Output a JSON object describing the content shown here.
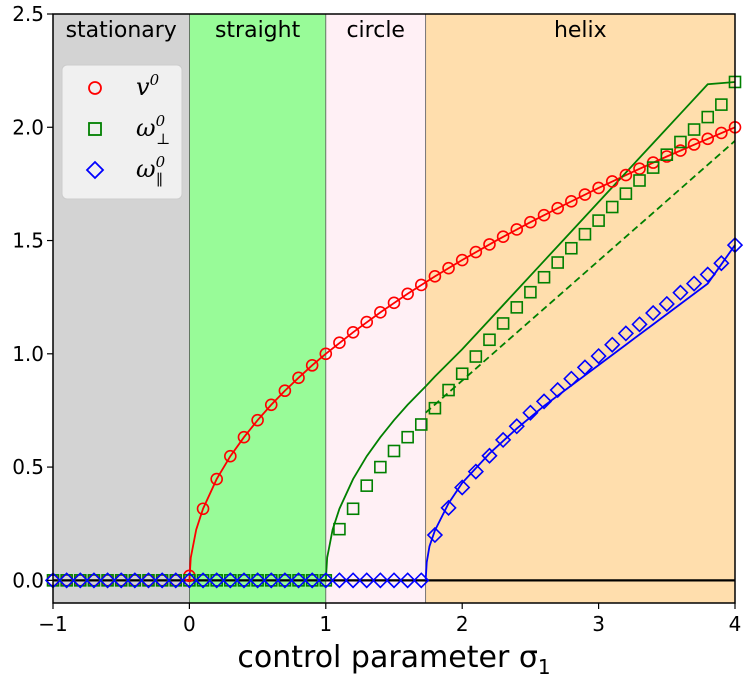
{
  "chart_data": {
    "type": "line",
    "xlabel": "control parameter σ",
    "xlabel_sub": "1",
    "xlim": [
      -1,
      4
    ],
    "ylim": [
      -0.1,
      2.5
    ],
    "x_ticks": [
      -1,
      0,
      1,
      2,
      3,
      4
    ],
    "x_tick_labels": [
      "−1",
      "0",
      "1",
      "2",
      "3",
      "4"
    ],
    "y_ticks": [
      0.0,
      0.5,
      1.0,
      1.5,
      2.0,
      2.5
    ],
    "y_tick_labels": [
      "0.0",
      "0.5",
      "1.0",
      "1.5",
      "2.0",
      "2.5"
    ],
    "legend_position": "upper-left",
    "regions": [
      {
        "label": "stationary",
        "from": -1,
        "to": 0,
        "color": "#d3d3d3"
      },
      {
        "label": "straight",
        "from": 0,
        "to": 1,
        "color": "#98fb98"
      },
      {
        "label": "circle",
        "from": 1,
        "to": 1.732,
        "color": "#fff0f5"
      },
      {
        "label": "helix",
        "from": 1.732,
        "to": 4,
        "color": "#ffdead"
      }
    ],
    "series": [
      {
        "name": "v",
        "superscript": "0",
        "subscript": "",
        "color": "#ff0000",
        "marker": "circle",
        "curve_points": [
          [
            0,
            0
          ],
          [
            0.01,
            0.1
          ],
          [
            0.05,
            0.224
          ],
          [
            0.1,
            0.316
          ],
          [
            0.2,
            0.447
          ],
          [
            0.3,
            0.548
          ],
          [
            0.4,
            0.632
          ],
          [
            0.5,
            0.707
          ],
          [
            0.6,
            0.775
          ],
          [
            0.7,
            0.837
          ],
          [
            0.8,
            0.894
          ],
          [
            0.9,
            0.949
          ],
          [
            1.0,
            1.0
          ],
          [
            1.2,
            1.095
          ],
          [
            1.4,
            1.183
          ],
          [
            1.6,
            1.265
          ],
          [
            1.8,
            1.342
          ],
          [
            2.0,
            1.414
          ],
          [
            2.25,
            1.5
          ],
          [
            2.5,
            1.581
          ],
          [
            2.75,
            1.658
          ],
          [
            3.0,
            1.732
          ],
          [
            3.25,
            1.803
          ],
          [
            3.5,
            1.871
          ],
          [
            3.75,
            1.936
          ],
          [
            4.0,
            2.0
          ]
        ],
        "marker_x": [
          -1,
          -0.9,
          -0.8,
          -0.7,
          -0.6,
          -0.5,
          -0.4,
          -0.3,
          -0.2,
          -0.1,
          0,
          0.1,
          0.2,
          0.3,
          0.4,
          0.5,
          0.6,
          0.7,
          0.8,
          0.9,
          1.0,
          1.1,
          1.2,
          1.3,
          1.4,
          1.5,
          1.6,
          1.7,
          1.8,
          1.9,
          2.0,
          2.1,
          2.2,
          2.3,
          2.4,
          2.5,
          2.6,
          2.7,
          2.8,
          2.9,
          3.0,
          3.1,
          3.2,
          3.3,
          3.4,
          3.5,
          3.6,
          3.7,
          3.8,
          3.9,
          4.0
        ],
        "marker_y": [
          0,
          0,
          0,
          0,
          0,
          0,
          0,
          0,
          0,
          0,
          0.02,
          0.316,
          0.447,
          0.548,
          0.632,
          0.707,
          0.775,
          0.837,
          0.894,
          0.949,
          1.0,
          1.049,
          1.095,
          1.14,
          1.183,
          1.225,
          1.265,
          1.304,
          1.342,
          1.378,
          1.414,
          1.449,
          1.483,
          1.517,
          1.549,
          1.581,
          1.612,
          1.643,
          1.673,
          1.703,
          1.732,
          1.761,
          1.789,
          1.817,
          1.844,
          1.871,
          1.897,
          1.924,
          1.949,
          1.975,
          2.0
        ]
      },
      {
        "name": "ω",
        "superscript": "0",
        "subscript": "⊥",
        "color": "#008000",
        "marker": "square",
        "curve_points": [
          [
            1.0,
            0
          ],
          [
            1.01,
            0.1
          ],
          [
            1.05,
            0.224
          ],
          [
            1.1,
            0.316
          ],
          [
            1.2,
            0.447
          ],
          [
            1.3,
            0.548
          ],
          [
            1.4,
            0.632
          ],
          [
            1.5,
            0.707
          ],
          [
            1.6,
            0.775
          ],
          [
            1.732,
            0.856
          ],
          [
            1.8,
            0.9
          ],
          [
            2.0,
            1.02
          ],
          [
            2.2,
            1.15
          ],
          [
            2.4,
            1.28
          ],
          [
            2.6,
            1.41
          ],
          [
            2.8,
            1.54
          ],
          [
            3.0,
            1.67
          ],
          [
            3.2,
            1.8
          ],
          [
            3.4,
            1.93
          ],
          [
            3.6,
            2.06
          ],
          [
            3.8,
            2.19
          ],
          [
            4.0,
            2.2
          ]
        ],
        "marker_x": [
          -1,
          -0.9,
          -0.8,
          -0.7,
          -0.6,
          -0.5,
          -0.4,
          -0.3,
          -0.2,
          -0.1,
          0,
          0.1,
          0.2,
          0.3,
          0.4,
          0.5,
          0.6,
          0.7,
          0.8,
          0.9,
          1.0,
          1.1,
          1.2,
          1.3,
          1.4,
          1.5,
          1.6,
          1.7,
          1.8,
          1.9,
          2.0,
          2.1,
          2.2,
          2.3,
          2.4,
          2.5,
          2.6,
          2.7,
          2.8,
          2.9,
          3.0,
          3.1,
          3.2,
          3.3,
          3.4,
          3.5,
          3.6,
          3.7,
          3.8,
          3.9,
          4.0
        ],
        "marker_y": [
          0,
          0,
          0,
          0,
          0,
          0,
          0,
          0,
          0,
          0,
          0,
          0,
          0,
          0,
          0,
          0,
          0,
          0,
          0,
          0,
          0,
          0.226,
          0.316,
          0.418,
          0.5,
          0.571,
          0.632,
          0.688,
          0.76,
          0.84,
          0.912,
          0.988,
          1.062,
          1.134,
          1.205,
          1.272,
          1.338,
          1.403,
          1.466,
          1.528,
          1.588,
          1.648,
          1.707,
          1.765,
          1.822,
          1.879,
          1.935,
          1.99,
          2.045,
          2.1,
          2.2
        ]
      },
      {
        "name": "ω",
        "superscript": "0",
        "subscript": "∥",
        "color": "#0000ff",
        "marker": "diamond",
        "curve_points": [
          [
            1.732,
            0
          ],
          [
            1.74,
            0.08
          ],
          [
            1.76,
            0.15
          ],
          [
            1.8,
            0.22
          ],
          [
            1.9,
            0.34
          ],
          [
            2.0,
            0.43
          ],
          [
            2.2,
            0.56
          ],
          [
            2.4,
            0.67
          ],
          [
            2.6,
            0.77
          ],
          [
            2.8,
            0.86
          ],
          [
            3.0,
            0.95
          ],
          [
            3.2,
            1.04
          ],
          [
            3.4,
            1.13
          ],
          [
            3.6,
            1.22
          ],
          [
            3.8,
            1.31
          ],
          [
            4.0,
            1.48
          ]
        ],
        "marker_x": [
          -1,
          -0.9,
          -0.8,
          -0.7,
          -0.6,
          -0.5,
          -0.4,
          -0.3,
          -0.2,
          -0.1,
          0,
          0.1,
          0.2,
          0.3,
          0.4,
          0.5,
          0.6,
          0.7,
          0.8,
          0.9,
          1.0,
          1.1,
          1.2,
          1.3,
          1.4,
          1.5,
          1.6,
          1.7,
          1.8,
          1.9,
          2.0,
          2.1,
          2.2,
          2.3,
          2.4,
          2.5,
          2.6,
          2.7,
          2.8,
          2.9,
          3.0,
          3.1,
          3.2,
          3.3,
          3.4,
          3.5,
          3.6,
          3.7,
          3.8,
          3.9,
          4.0
        ],
        "marker_y": [
          0,
          0,
          0,
          0,
          0,
          0,
          0,
          0,
          0,
          0,
          0,
          0,
          0,
          0,
          0,
          0,
          0,
          0,
          0,
          0,
          0,
          0,
          0,
          0,
          0,
          0,
          0,
          0,
          0.2,
          0.32,
          0.41,
          0.48,
          0.55,
          0.62,
          0.68,
          0.74,
          0.79,
          0.84,
          0.89,
          0.94,
          0.99,
          1.04,
          1.09,
          1.13,
          1.18,
          1.22,
          1.27,
          1.31,
          1.35,
          1.4,
          1.48
        ]
      }
    ],
    "reference_lines": [
      {
        "style": "dashed",
        "color": "#008000",
        "points": [
          [
            1.732,
            0.74
          ],
          [
            4.0,
            1.94
          ]
        ]
      },
      {
        "style": "solid",
        "color": "#000000",
        "points": [
          [
            -1,
            0
          ],
          [
            4,
            0
          ]
        ]
      }
    ]
  }
}
